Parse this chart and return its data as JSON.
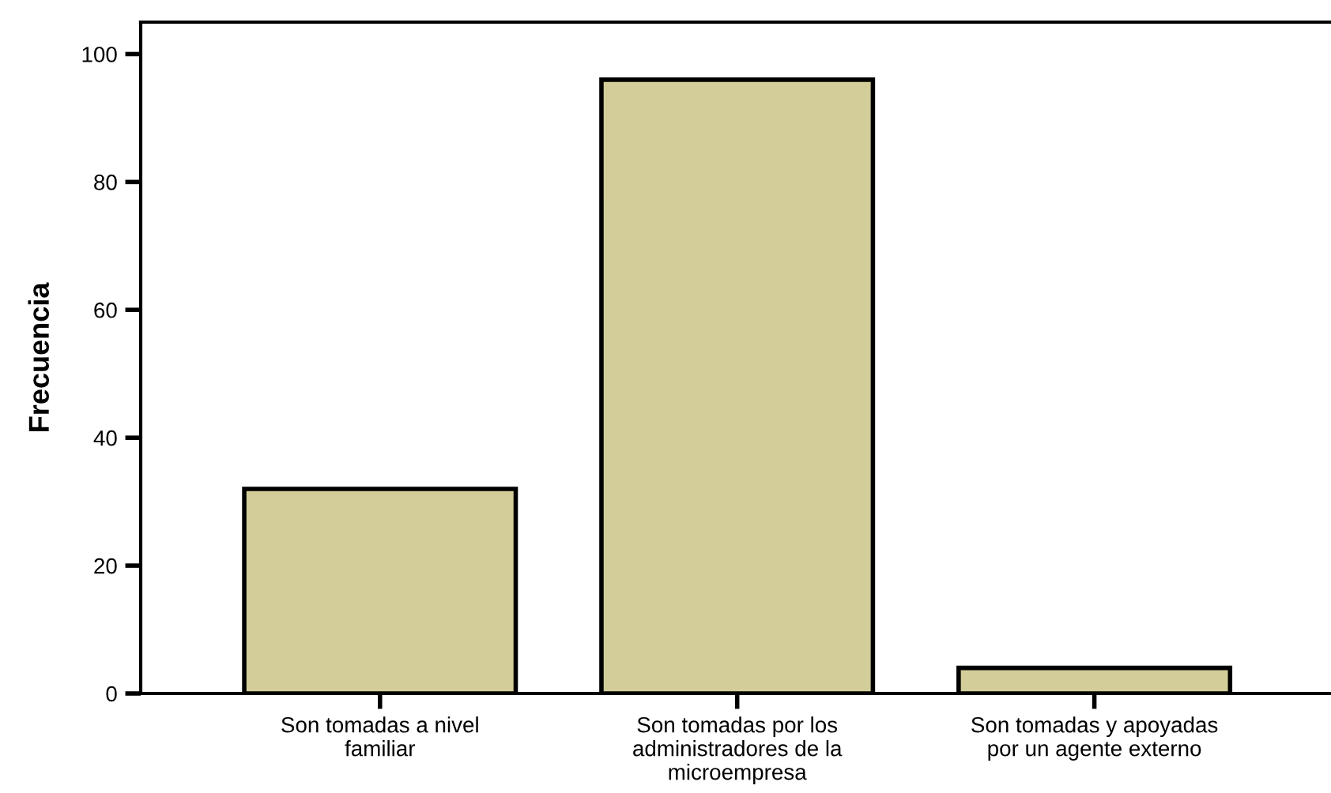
{
  "chart_data": {
    "type": "bar",
    "ylabel": "Frecuencia",
    "categories": [
      "Son tomadas a nivel\nfamiliar",
      "Son tomadas por los\nadministradores de la\nmicroempresa",
      "Son tomadas y apoyadas\npor un agente externo"
    ],
    "values": [
      32,
      96,
      4
    ],
    "color": "#d3ce99",
    "ylim": [
      0,
      105
    ],
    "yticks": [
      0,
      20,
      40,
      60,
      80,
      100
    ],
    "grid": false
  }
}
